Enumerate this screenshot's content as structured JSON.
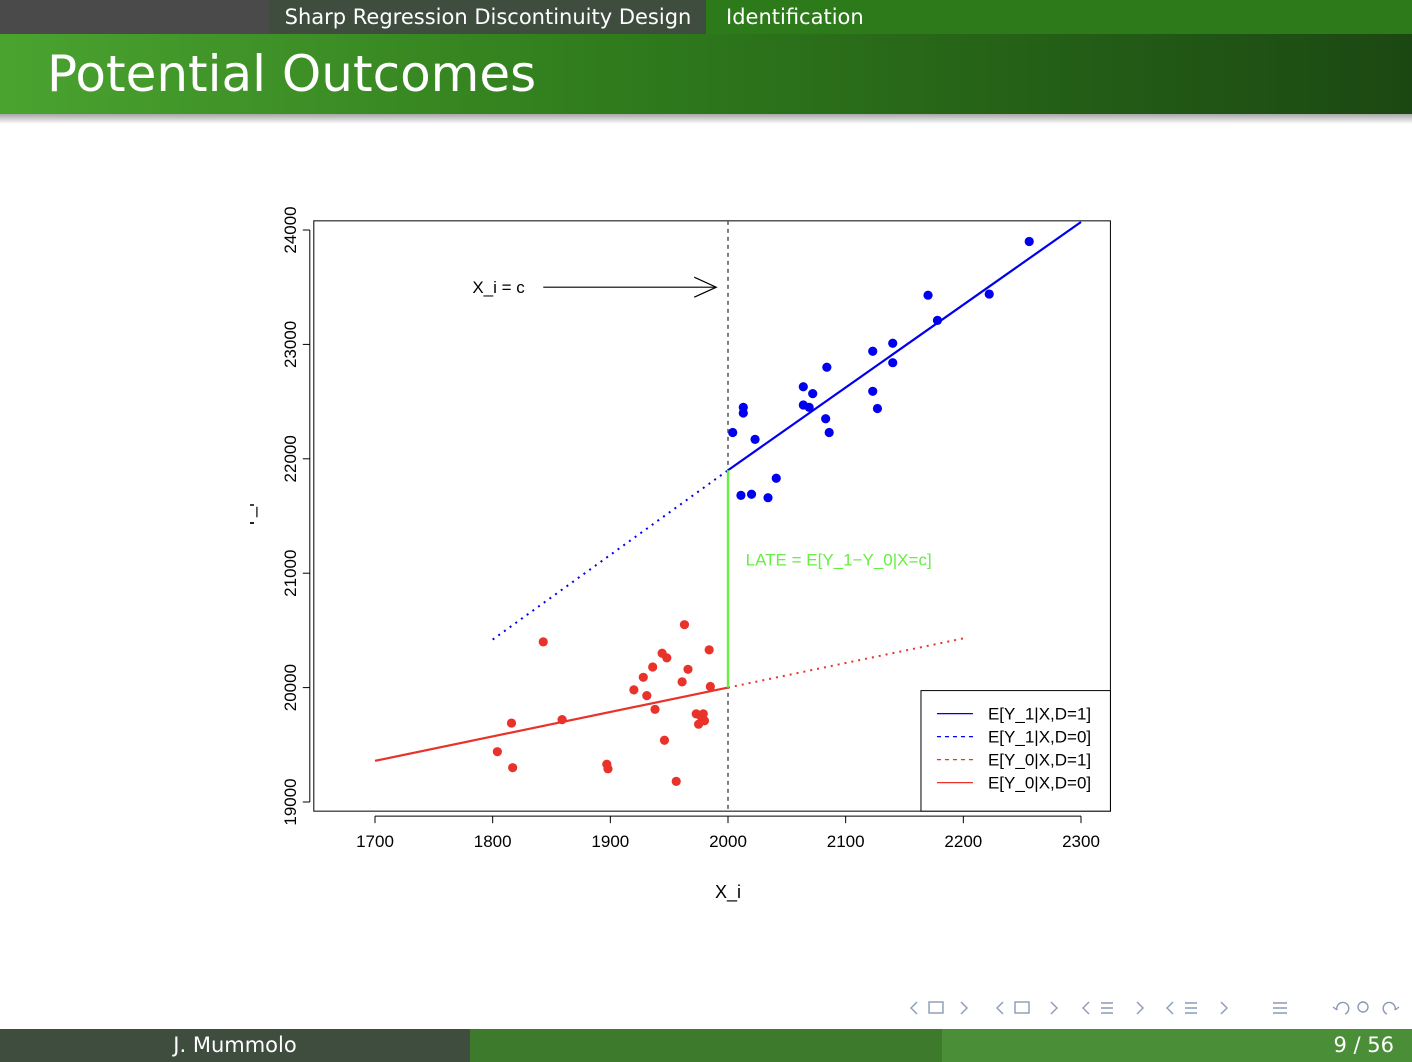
{
  "header": {
    "section": "Sharp Regression Discontinuity Design",
    "subsection": "Identification"
  },
  "frame": {
    "title": "Potential Outcomes"
  },
  "footer": {
    "author": "J. Mummolo",
    "page": "9 / 56"
  },
  "chart_data": {
    "type": "scatter",
    "xlabel": "X_i",
    "ylabel": "Y_i",
    "xlim": [
      1700,
      2300
    ],
    "ylim": [
      19000,
      24000
    ],
    "xticks": [
      1700,
      1800,
      1900,
      2000,
      2100,
      2200,
      2300
    ],
    "yticks": [
      19000,
      20000,
      21000,
      22000,
      23000,
      24000
    ],
    "cutoff": 2000,
    "cutoff_label": "X_i = c",
    "late_label": "LATE = E[Y_1−Y_0|X=c]",
    "late_segment": {
      "x": 2000,
      "y_from": 20000,
      "y_to": 21900
    },
    "legend_position": "bottom-right",
    "colors": {
      "treated": "#0000ee",
      "control": "#e8322a",
      "late": "#66ee44",
      "cutoff": "#555555"
    },
    "lines": [
      {
        "name": "E[Y_1|X,D=1]",
        "color": "#0000ee",
        "style": "solid",
        "x": [
          2000,
          2300
        ],
        "y": [
          21900,
          24070
        ]
      },
      {
        "name": "E[Y_1|X,D=0]",
        "color": "#0000ee",
        "style": "dotted",
        "x": [
          1800,
          2000
        ],
        "y": [
          20420,
          21900
        ]
      },
      {
        "name": "E[Y_0|X,D=1]",
        "color": "#e8322a",
        "style": "dotted",
        "x": [
          2000,
          2200
        ],
        "y": [
          20000,
          20430
        ]
      },
      {
        "name": "E[Y_0|X,D=0]",
        "color": "#e8322a",
        "style": "solid",
        "x": [
          1700,
          2000
        ],
        "y": [
          19360,
          20000
        ]
      }
    ],
    "series": [
      {
        "group": "treated",
        "color": "#0000ee",
        "x": [
          2004,
          2013,
          2013,
          2023,
          2011,
          2020,
          2034,
          2041,
          2064,
          2064,
          2069,
          2072,
          2084,
          2083,
          2086,
          2123,
          2123,
          2127,
          2140,
          2140,
          2170,
          2178,
          2222,
          2256
        ],
        "y": [
          22230,
          22450,
          22400,
          22170,
          21680,
          21690,
          21660,
          21830,
          22630,
          22470,
          22450,
          22570,
          22800,
          22350,
          22230,
          22940,
          22590,
          22440,
          23010,
          22840,
          23430,
          23210,
          23440,
          23900
        ]
      },
      {
        "group": "control",
        "color": "#e8322a",
        "x": [
          1804,
          1816,
          1817,
          1843,
          1859,
          1897,
          1898,
          1920,
          1928,
          1931,
          1936,
          1938,
          1944,
          1946,
          1948,
          1956,
          1961,
          1963,
          1966,
          1973,
          1975,
          1977,
          1979,
          1980,
          1984,
          1985
        ],
        "y": [
          19440,
          19690,
          19300,
          20400,
          19720,
          19330,
          19290,
          19980,
          20090,
          19930,
          20180,
          19810,
          20300,
          19540,
          20260,
          19180,
          20050,
          20550,
          20160,
          19770,
          19680,
          19750,
          19770,
          19710,
          20330,
          20010
        ]
      }
    ]
  },
  "nav_symbols": [
    "◂",
    "□",
    "▸",
    "◂",
    "▸",
    "◂",
    "≣",
    "▸",
    "◂",
    "≣",
    "▸",
    "≣",
    "↶",
    "⌕",
    "↷"
  ]
}
